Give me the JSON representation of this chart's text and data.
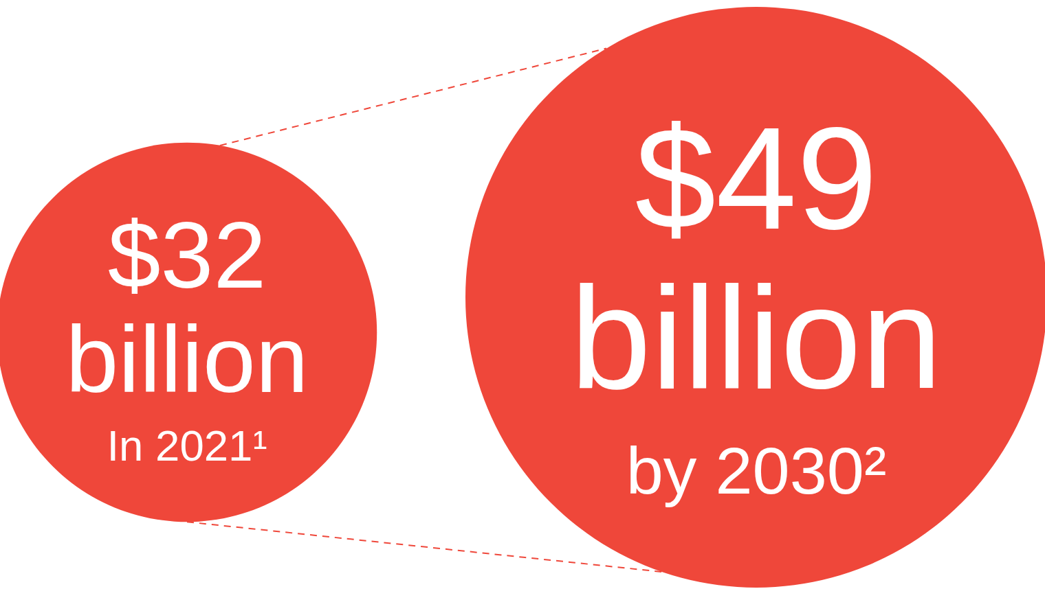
{
  "chart_data": {
    "type": "other",
    "categories": [
      "In 2021¹",
      "by 2030²"
    ],
    "values": [
      32,
      49
    ],
    "value_labels": [
      "$32 billion",
      "$49 billion"
    ],
    "colors": [
      "#ef473a",
      "#ef473a"
    ]
  }
}
